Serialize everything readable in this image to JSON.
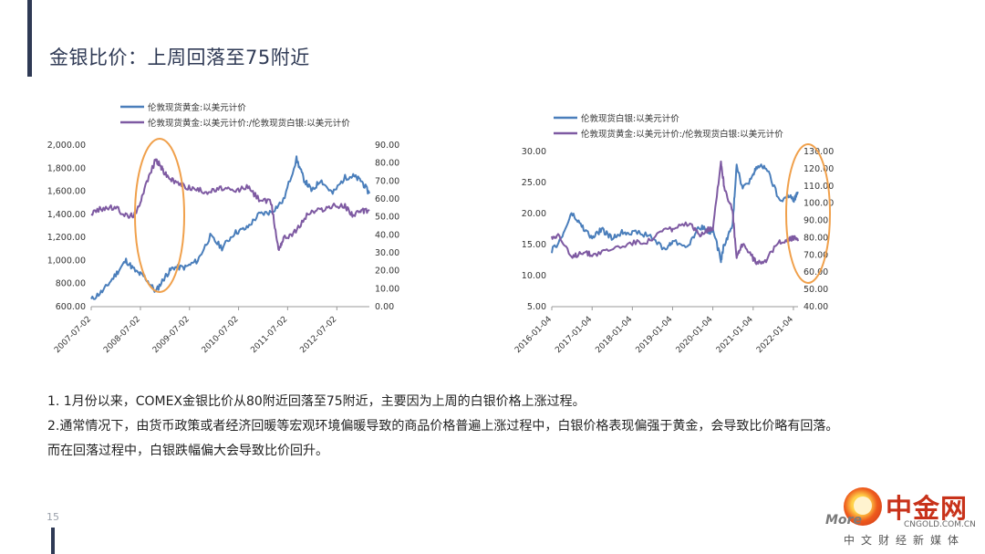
{
  "page": {
    "title": "金银比价：上周回落至75附近",
    "page_number": "15"
  },
  "chart_data": [
    {
      "type": "line",
      "legend": "top",
      "series": [
        {
          "name": "伦敦现货黄金:以美元计价",
          "color": "#4a7ebb",
          "axis": "left",
          "x": [
            "2007-07-02",
            "2007-10-01",
            "2008-01-01",
            "2008-03-17",
            "2008-06-01",
            "2008-08-01",
            "2008-10-24",
            "2009-01-01",
            "2009-03-01",
            "2009-06-01",
            "2009-09-01",
            "2009-12-03",
            "2010-03-01",
            "2010-06-01",
            "2010-09-01",
            "2010-12-01",
            "2011-03-01",
            "2011-06-01",
            "2011-09-06",
            "2011-11-01",
            "2012-01-01",
            "2012-03-01",
            "2012-06-01",
            "2012-09-01",
            "2012-11-01",
            "2013-01-01",
            "2013-03-01"
          ],
          "values": [
            660,
            740,
            880,
            1000,
            900,
            860,
            730,
            860,
            940,
            940,
            1000,
            1210,
            1110,
            1240,
            1280,
            1400,
            1420,
            1520,
            1880,
            1700,
            1600,
            1700,
            1580,
            1720,
            1730,
            1690,
            1580
          ]
        },
        {
          "name": "伦敦现货黄金:以美元计价:/伦敦现货白银:以美元计价",
          "color": "#7e5aa2",
          "axis": "right",
          "x": [
            "2007-07-02",
            "2007-10-01",
            "2008-01-01",
            "2008-04-01",
            "2008-06-01",
            "2008-08-01",
            "2008-10-24",
            "2008-12-01",
            "2009-01-01",
            "2009-03-01",
            "2009-06-01",
            "2009-09-01",
            "2009-12-01",
            "2010-03-01",
            "2010-06-01",
            "2010-09-01",
            "2010-12-01",
            "2011-03-01",
            "2011-04-25",
            "2011-06-01",
            "2011-09-01",
            "2011-12-01",
            "2012-03-01",
            "2012-06-01",
            "2012-09-01",
            "2012-11-01",
            "2013-01-01",
            "2013-03-01"
          ],
          "values": [
            52,
            55,
            55,
            50,
            52,
            66,
            82,
            78,
            74,
            70,
            67,
            65,
            64,
            66,
            64,
            67,
            60,
            58,
            32,
            38,
            42,
            52,
            54,
            56,
            56,
            51,
            53,
            54
          ]
        }
      ],
      "x_ticks": [
        "2007-07-02",
        "2008-07-02",
        "2009-07-02",
        "2010-07-02",
        "2011-07-02",
        "2012-07-02"
      ],
      "y_left": {
        "min": 600,
        "max": 2000,
        "ticks": [
          "2,000.00",
          "1,800.00",
          "1,600.00",
          "1,400.00",
          "1,200.00",
          "1,000.00",
          "800.00",
          "600.00"
        ]
      },
      "y_right": {
        "min": 0,
        "max": 90,
        "ticks": [
          "90.00",
          "80.00",
          "70.00",
          "60.00",
          "50.00",
          "40.00",
          "30.00",
          "20.00",
          "10.00",
          "0.00"
        ]
      },
      "highlight_color": "#f0a04b"
    },
    {
      "type": "line",
      "legend": "top",
      "series": [
        {
          "name": "伦敦现货白银:以美元计价",
          "color": "#4a7ebb",
          "axis": "left",
          "x": [
            "2016-01-04",
            "2016-04-01",
            "2016-07-01",
            "2016-10-01",
            "2017-01-04",
            "2017-04-01",
            "2017-07-01",
            "2017-10-01",
            "2018-01-04",
            "2018-06-01",
            "2018-11-01",
            "2019-01-04",
            "2019-06-01",
            "2019-09-01",
            "2019-12-01",
            "2020-01-04",
            "2020-03-18",
            "2020-04-15",
            "2020-07-01",
            "2020-08-07",
            "2020-10-01",
            "2021-01-04",
            "2021-02-01",
            "2021-05-01",
            "2021-09-01",
            "2021-12-01",
            "2022-01-04",
            "2022-02-15"
          ],
          "values": [
            14,
            16,
            20,
            18,
            16,
            17.5,
            16,
            17,
            17,
            16.5,
            14.2,
            15.5,
            14.8,
            18,
            17,
            17.5,
            12.5,
            15,
            18,
            28,
            24,
            26,
            27.5,
            27.5,
            22,
            23,
            22,
            23.5
          ]
        },
        {
          "name": "伦敦现货黄金:以美元计价:/伦敦现货白银:以美元计价",
          "color": "#7e5aa2",
          "axis": "right",
          "x": [
            "2016-01-04",
            "2016-03-01",
            "2016-07-01",
            "2016-10-01",
            "2017-01-04",
            "2017-06-01",
            "2018-01-04",
            "2018-06-01",
            "2018-11-01",
            "2019-01-04",
            "2019-06-01",
            "2019-09-01",
            "2019-12-01",
            "2020-01-04",
            "2020-03-18",
            "2020-04-15",
            "2020-07-01",
            "2020-08-07",
            "2020-10-01",
            "2021-01-04",
            "2021-02-01",
            "2021-05-01",
            "2021-09-01",
            "2021-12-01",
            "2022-01-04",
            "2022-02-15"
          ],
          "values": [
            80,
            82,
            68,
            72,
            70,
            73,
            77,
            78,
            85,
            85,
            88,
            82,
            85,
            86,
            124,
            110,
            95,
            68,
            77,
            68,
            66,
            67,
            78,
            79,
            80,
            78
          ]
        }
      ],
      "x_ticks": [
        "2016-01-04",
        "2017-01-04",
        "2018-01-04",
        "2019-01-04",
        "2020-01-04",
        "2021-01-04",
        "2022-01-04"
      ],
      "y_left": {
        "min": 5,
        "max": 30,
        "ticks": [
          "30.00",
          "25.00",
          "20.00",
          "15.00",
          "10.00",
          "5.00"
        ]
      },
      "y_right": {
        "min": 40,
        "max": 130,
        "ticks": [
          "130.00",
          "120.00",
          "110.00",
          "100.00",
          "90.00",
          "80.00",
          "70.00",
          "60.00",
          "50.00",
          "40.00"
        ]
      },
      "highlight_color": "#f0a04b"
    }
  ],
  "notes": [
    "1. 1月份以来，COMEX金银比价从80附近回落至75附近，主要因为上周的白银价格上涨过程。",
    "2.通常情况下，由货币政策或者经济回暖等宏观环境偏暖导致的商品价格普遍上涨过程中，白银价格表现偏强于黄金，会导致比价略有回落。",
    "而在回落过程中，白银跌幅偏大会导致比价回升。"
  ],
  "logo": {
    "cn": "中金网",
    "latin": "More",
    "domain": "CNGOLD.COM.CN",
    "tagline": "中文财经新媒体"
  }
}
